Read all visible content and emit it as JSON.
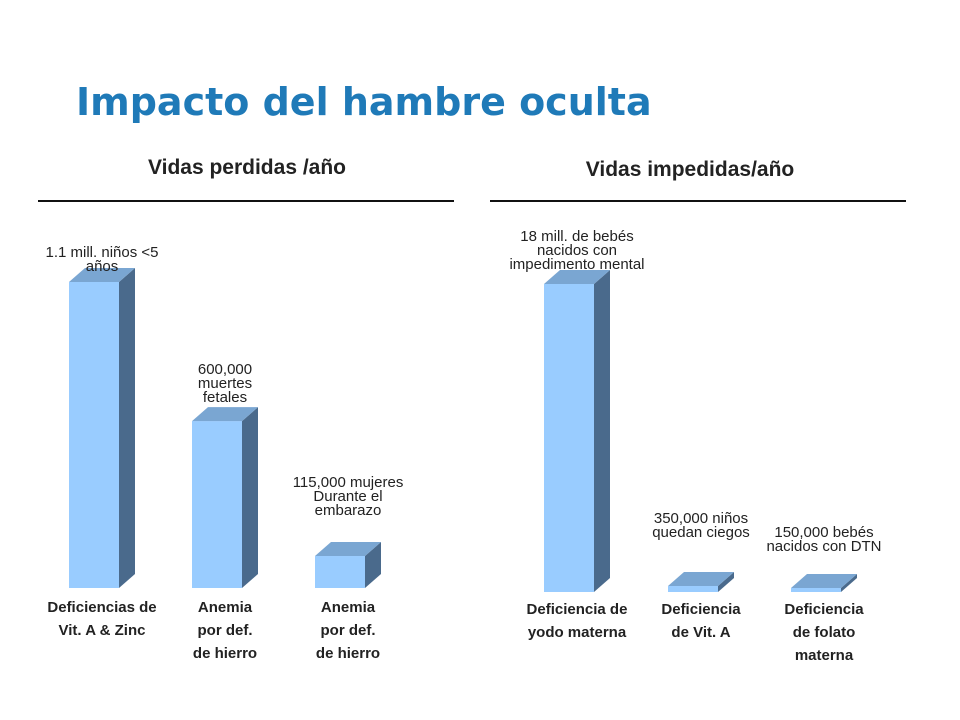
{
  "title": "Impacto del hambre oculta",
  "chart_data": [
    {
      "type": "bar",
      "title": "Vidas perdidas /año",
      "categories": [
        [
          "Deficiencias de",
          "Vit. A & Zinc"
        ],
        [
          "Anemia",
          "por def.",
          "de hierro"
        ],
        [
          "Anemia",
          "por def.",
          "de hierro"
        ]
      ],
      "values": [
        1100000,
        600000,
        115000
      ],
      "data_labels": [
        [
          "1.1 mill. niños <5",
          "años"
        ],
        [
          "600,000",
          "muertes",
          "fetales"
        ],
        [
          "115,000 mujeres",
          "Durante el",
          "embarazo"
        ]
      ],
      "ylim": [
        0,
        1100000
      ],
      "grid": false,
      "bar_color": "#99ccff",
      "side_color": "#4a6a8c",
      "top_color": "#7aa6d2"
    },
    {
      "type": "bar",
      "title": "Vidas impedidas/año",
      "categories": [
        [
          "Deficiencia de",
          "yodo materna"
        ],
        [
          "Deficiencia",
          "de Vit. A"
        ],
        [
          "Deficiencia",
          "de folato",
          "materna"
        ]
      ],
      "values": [
        18000000,
        350000,
        150000
      ],
      "data_labels": [
        [
          "18 mill. de bebés",
          "nacidos con",
          "impedimento mental"
        ],
        [
          "350,000 niños",
          "quedan ciegos"
        ],
        [
          "150,000 bebés",
          "nacidos con DTN"
        ]
      ],
      "ylim": [
        0,
        18000000
      ],
      "grid": false,
      "bar_color": "#99ccff",
      "side_color": "#4a6a8c",
      "top_color": "#7aa6d2"
    }
  ]
}
